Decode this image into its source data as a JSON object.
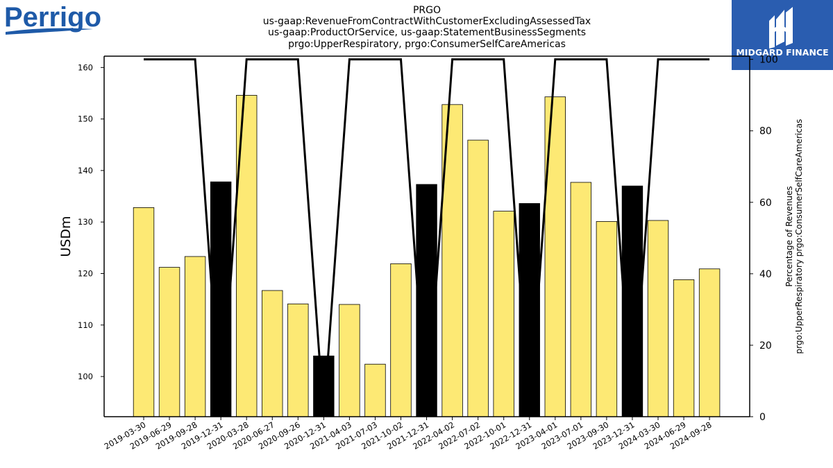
{
  "logos": {
    "left_text": "Perrigo",
    "right_text": "MIDGARD FINANCE",
    "left_color": "#1e5aa8",
    "right_bg": "#2a5db0"
  },
  "chart_data": {
    "type": "bar",
    "title_lines": [
      "PRGO",
      "us-gaap:RevenueFromContractWithCustomerExcludingAssessedTax",
      "us-gaap:ProductOrService, us-gaap:StatementBusinessSegments",
      "prgo:UpperRespiratory, prgo:ConsumerSelfCareAmericas"
    ],
    "ylabel": "USDm",
    "y2label_lines": [
      "Percentage of Revenues",
      "prgo:UpperRespiratory prgo:ConsumerSelfCareAmericas"
    ],
    "categories": [
      "2019-03-30",
      "2019-06-29",
      "2019-09-28",
      "2019-12-31",
      "2020-03-28",
      "2020-06-27",
      "2020-09-26",
      "2020-12-31",
      "2021-04-03",
      "2021-07-03",
      "2021-10-02",
      "2021-12-31",
      "2022-04-02",
      "2022-07-02",
      "2022-10-01",
      "2022-12-31",
      "2023-04-01",
      "2023-07-01",
      "2023-09-30",
      "2023-12-31",
      "2024-03-30",
      "2024-06-29",
      "2024-09-28"
    ],
    "values": [
      132.8,
      121.2,
      123.3,
      137.8,
      154.6,
      116.7,
      114.1,
      104.0,
      114.0,
      102.4,
      121.9,
      137.3,
      152.8,
      145.9,
      132.1,
      133.6,
      154.3,
      137.7,
      130.1,
      137.0,
      130.3,
      118.8,
      120.9
    ],
    "annual": [
      false,
      false,
      false,
      true,
      false,
      false,
      false,
      true,
      false,
      false,
      false,
      true,
      false,
      false,
      false,
      true,
      false,
      false,
      false,
      true,
      false,
      false,
      false
    ],
    "percent_series": [
      100,
      100,
      100,
      null,
      100,
      100,
      100,
      null,
      100,
      100,
      100,
      null,
      100,
      100,
      100,
      null,
      100,
      100,
      100,
      null,
      100,
      100,
      100
    ],
    "ylim": [
      92.2,
      162.2
    ],
    "yticks": [
      100,
      110,
      120,
      130,
      140,
      150,
      160
    ],
    "y2lim": [
      0,
      100.9
    ],
    "y2ticks": [
      0,
      20,
      40,
      60,
      80,
      100
    ],
    "colors": {
      "quarter_bar": "#fde974",
      "annual_bar": "#000000",
      "line": "#000000"
    }
  }
}
